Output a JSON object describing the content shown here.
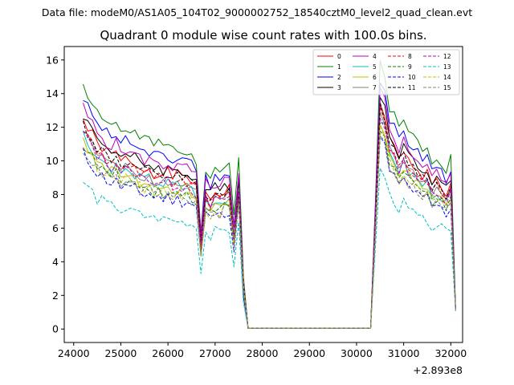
{
  "chart_data": {
    "type": "line",
    "suptitle": "Data file: modeM0/AS1A05_104T02_9000002752_18540cztM0_level2_quad_clean.evt",
    "title": "Quadrant 0 module wise count rates with 100.0s bins.",
    "xlabel": "",
    "ylabel": "",
    "x_offset_label": "+2.893e8",
    "xlim": [
      23800,
      32250
    ],
    "ylim": [
      -0.8,
      16.8
    ],
    "x_ticks": [
      24000,
      25000,
      26000,
      27000,
      28000,
      29000,
      30000,
      31000,
      32000
    ],
    "y_ticks": [
      0,
      2,
      4,
      6,
      8,
      10,
      12,
      14,
      16
    ],
    "legend_position": "top-right",
    "legend_columns": 4,
    "template": {
      "x_start": 24200,
      "x_step": 100,
      "segment1": [
        11.2,
        10.9,
        10.8,
        10.5,
        10.6,
        10.3,
        10.1,
        10.2,
        9.8,
        9.9,
        9.6,
        9.7,
        9.4,
        9.3,
        9.4,
        9.1,
        9.2,
        9.0,
        9.1,
        8.9,
        9.0,
        8.8,
        8.9,
        8.7,
        8.4,
        5.0,
        8.0,
        7.6,
        8.0,
        7.8,
        8.1,
        8.2,
        5.4,
        8.4,
        2.5,
        0.05
      ],
      "gap_start": 27700,
      "gap_end": 30200,
      "segment2": [
        0.05,
        6.5,
        13.2,
        12.6,
        11.0,
        10.6,
        9.9,
        10.4,
        9.8,
        9.6,
        9.3,
        9.0,
        9.1,
        8.4,
        8.6,
        8.3,
        7.9,
        8.5,
        1.2
      ],
      "segment2_start": 30300
    },
    "series": [
      {
        "name": "0",
        "color": "#ff0000",
        "dashed": false,
        "scale": 1.02,
        "seed": 1
      },
      {
        "name": "1",
        "color": "#008000",
        "dashed": false,
        "scale": 1.2,
        "seed": 2
      },
      {
        "name": "2",
        "color": "#0000ff",
        "dashed": false,
        "scale": 1.13,
        "seed": 3
      },
      {
        "name": "3",
        "color": "#000000",
        "dashed": false,
        "scale": 1.05,
        "seed": 4
      },
      {
        "name": "4",
        "color": "#bf00bf",
        "dashed": false,
        "scale": 1.08,
        "seed": 5
      },
      {
        "name": "5",
        "color": "#00bfbf",
        "dashed": false,
        "scale": 0.95,
        "seed": 6
      },
      {
        "name": "6",
        "color": "#bfbf00",
        "dashed": false,
        "scale": 0.93,
        "seed": 7
      },
      {
        "name": "7",
        "color": "#808080",
        "dashed": false,
        "scale": 0.97,
        "seed": 8
      },
      {
        "name": "8",
        "color": "#ff0000",
        "dashed": true,
        "scale": 0.98,
        "seed": 9
      },
      {
        "name": "9",
        "color": "#008000",
        "dashed": true,
        "scale": 0.9,
        "seed": 10
      },
      {
        "name": "10",
        "color": "#0000ff",
        "dashed": true,
        "scale": 0.86,
        "seed": 11
      },
      {
        "name": "11",
        "color": "#000000",
        "dashed": true,
        "scale": 1.0,
        "seed": 12
      },
      {
        "name": "12",
        "color": "#bf00bf",
        "dashed": true,
        "scale": 0.96,
        "seed": 13
      },
      {
        "name": "13",
        "color": "#00bfbf",
        "dashed": true,
        "scale": 0.72,
        "seed": 14
      },
      {
        "name": "14",
        "color": "#bfbf00",
        "dashed": true,
        "scale": 0.9,
        "seed": 15
      },
      {
        "name": "15",
        "color": "#808080",
        "dashed": true,
        "scale": 0.88,
        "seed": 16
      }
    ]
  }
}
